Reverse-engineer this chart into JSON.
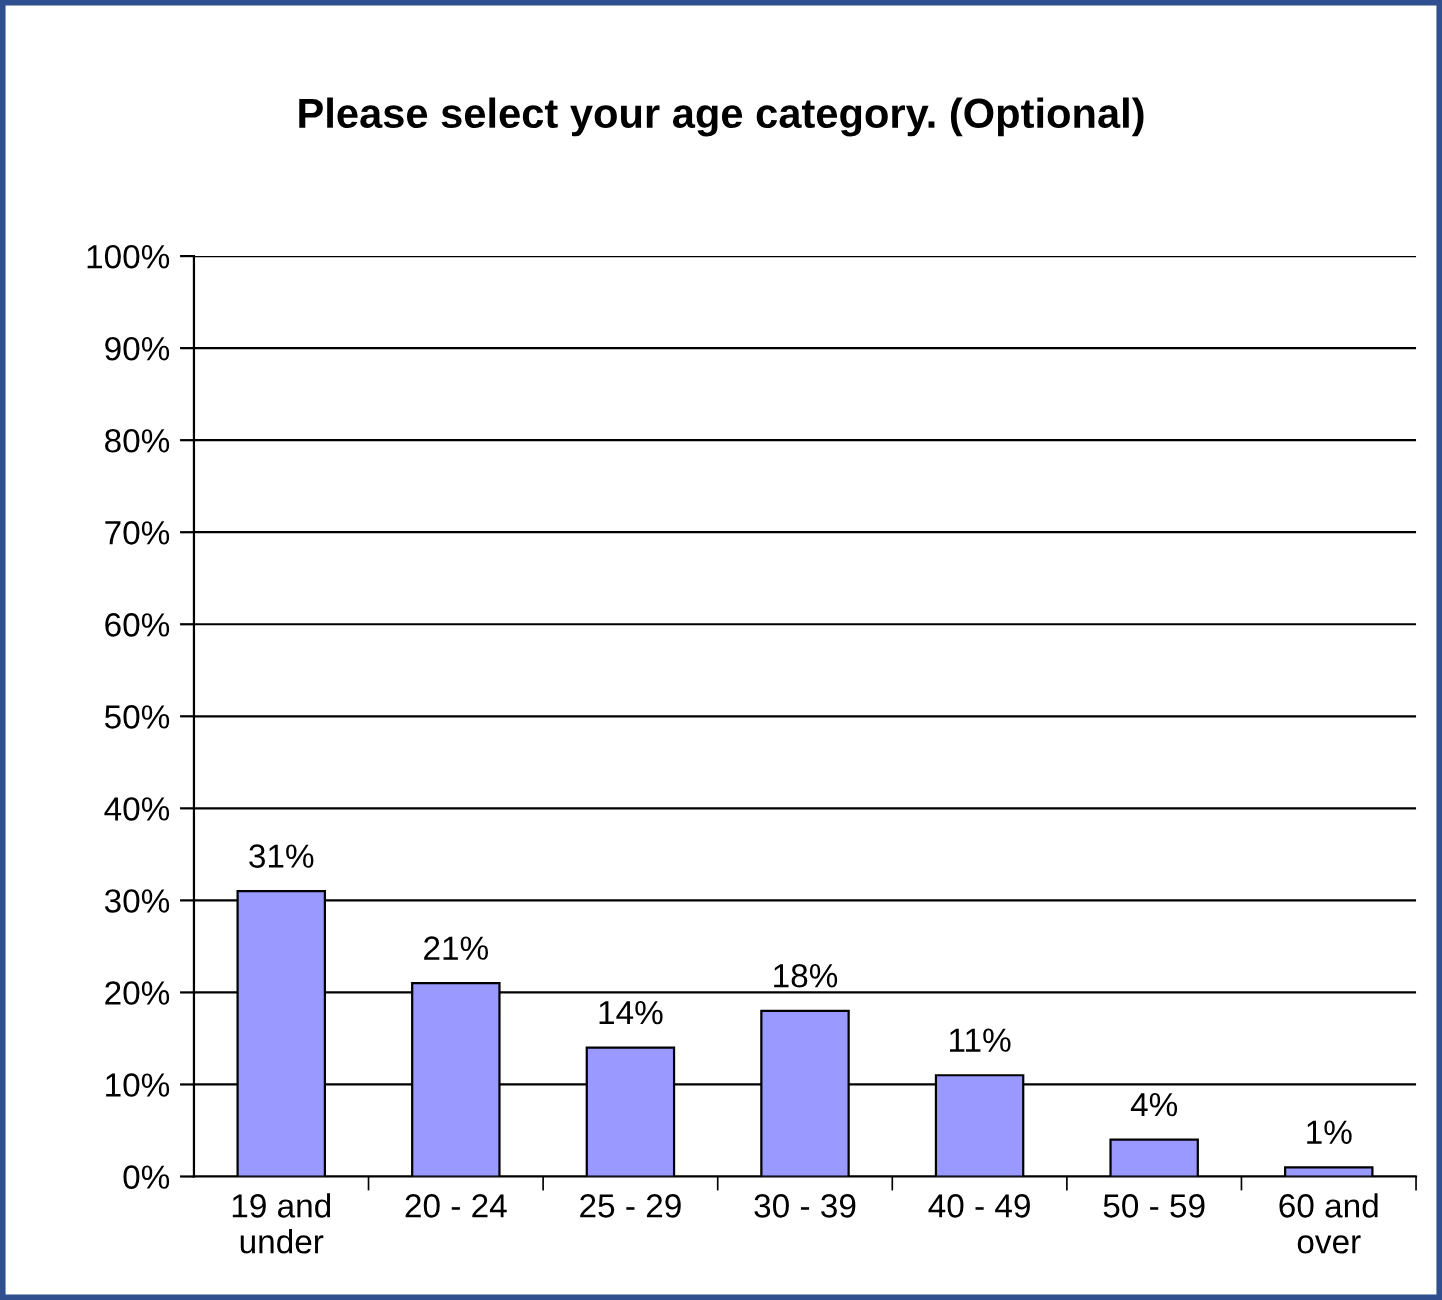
{
  "chart_data": {
    "type": "bar",
    "title": "Please select your age category. (Optional)",
    "categories": [
      "19 and\nunder",
      "20 - 24",
      "25 - 29",
      "30 - 39",
      "40 - 49",
      "50 - 59",
      "60 and\nover"
    ],
    "values": [
      31,
      21,
      14,
      18,
      11,
      4,
      1
    ],
    "value_labels": [
      "31%",
      "21%",
      "14%",
      "18%",
      "11%",
      "4%",
      "1%"
    ],
    "color": "#9999ff",
    "ylim": [
      0,
      100
    ],
    "yticks": [
      {
        "value": 0,
        "label": "0%"
      },
      {
        "value": 10,
        "label": "10%"
      },
      {
        "value": 20,
        "label": "20%"
      },
      {
        "value": 30,
        "label": "30%"
      },
      {
        "value": 40,
        "label": "40%"
      },
      {
        "value": 50,
        "label": "50%"
      },
      {
        "value": 60,
        "label": "60%"
      },
      {
        "value": 70,
        "label": "70%"
      },
      {
        "value": 80,
        "label": "80%"
      },
      {
        "value": 90,
        "label": "90%"
      },
      {
        "value": 100,
        "label": "100%"
      }
    ],
    "grid": "y"
  }
}
